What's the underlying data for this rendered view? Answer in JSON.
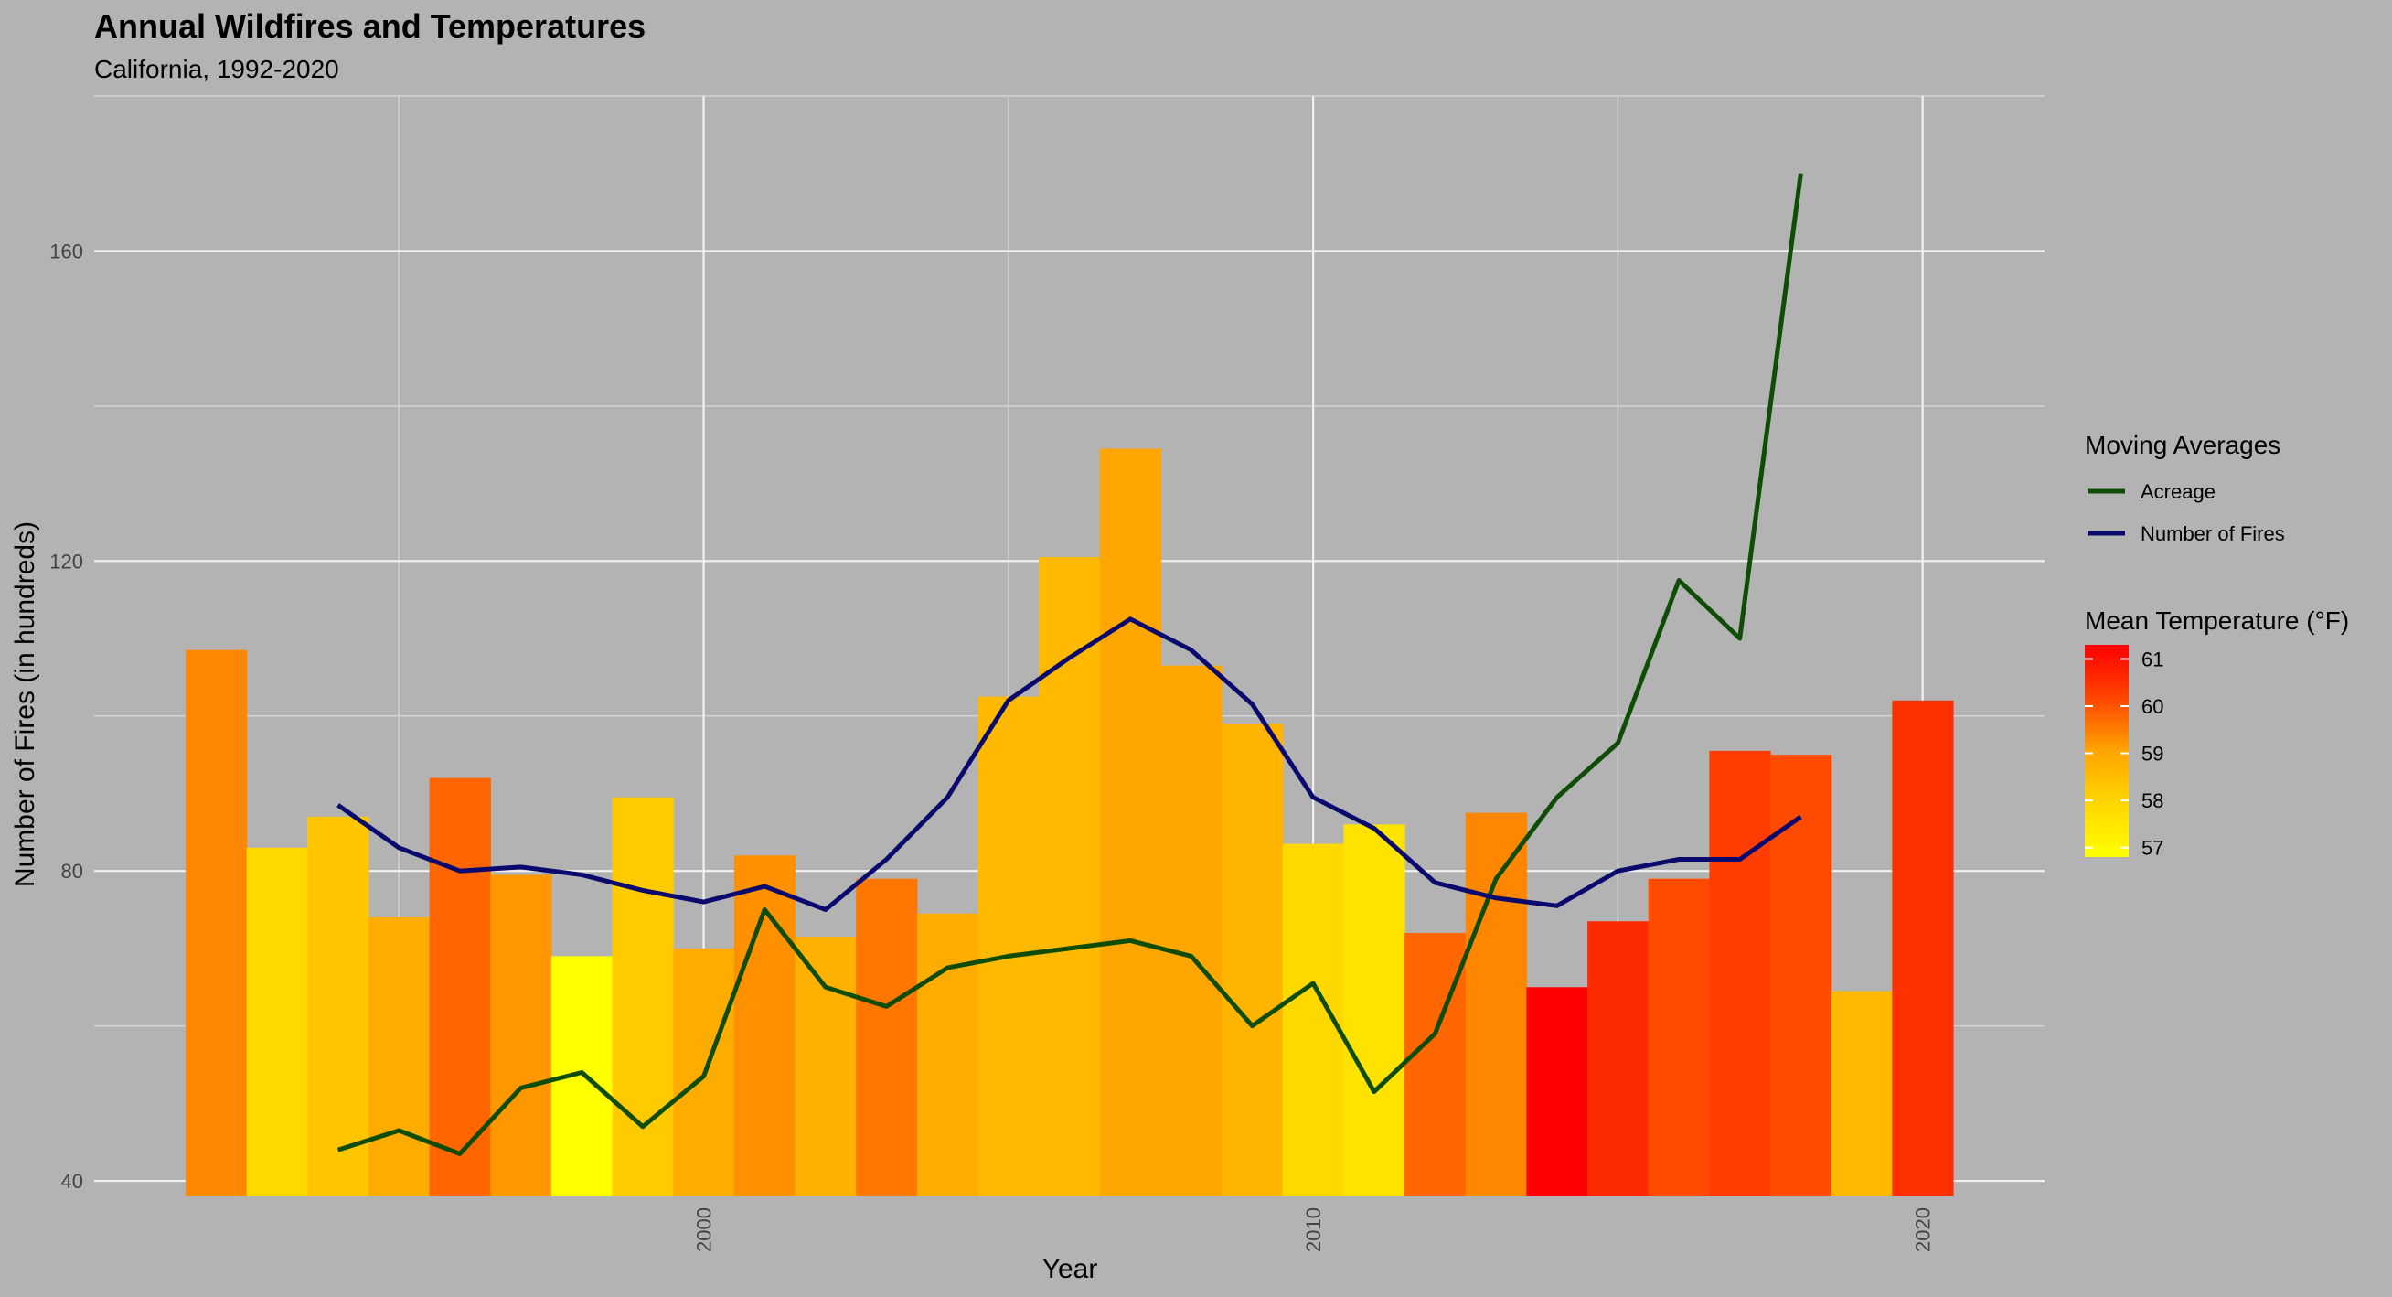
{
  "chart_data": {
    "type": "bar",
    "title": "Annual Wildfires and Temperatures",
    "subtitle": "California, 1992-2020",
    "xlabel": "Year",
    "ylabel": "Number of Fires (in hundreds)",
    "ylim": [
      38,
      180
    ],
    "xlim": [
      1990,
      2022
    ],
    "y_ticks": [
      40,
      80,
      120,
      160
    ],
    "x_ticks": [
      2000,
      2010,
      2020
    ],
    "x_tick_labels": [
      "2000",
      "2010",
      "2020"
    ],
    "y_tick_labels": [
      "40",
      "80",
      "120",
      "160"
    ],
    "grid": true,
    "bars": [
      {
        "year": 1992,
        "fires": 108.5,
        "temp": 59.4
      },
      {
        "year": 1993,
        "fires": 83,
        "temp": 57.9
      },
      {
        "year": 1994,
        "fires": 87,
        "temp": 58.3
      },
      {
        "year": 1995,
        "fires": 74,
        "temp": 58.9
      },
      {
        "year": 1996,
        "fires": 92,
        "temp": 59.8
      },
      {
        "year": 1997,
        "fires": 79.5,
        "temp": 59.2
      },
      {
        "year": 1998,
        "fires": 69,
        "temp": 56.8
      },
      {
        "year": 1999,
        "fires": 89.5,
        "temp": 58.2
      },
      {
        "year": 2000,
        "fires": 70,
        "temp": 58.9
      },
      {
        "year": 2001,
        "fires": 82,
        "temp": 59.3
      },
      {
        "year": 2002,
        "fires": 71.5,
        "temp": 58.8
      },
      {
        "year": 2003,
        "fires": 79,
        "temp": 59.6
      },
      {
        "year": 2004,
        "fires": 74.5,
        "temp": 58.9
      },
      {
        "year": 2005,
        "fires": 102.5,
        "temp": 58.6
      },
      {
        "year": 2006,
        "fires": 120.5,
        "temp": 58.6
      },
      {
        "year": 2007,
        "fires": 134.5,
        "temp": 59
      },
      {
        "year": 2008,
        "fires": 106.5,
        "temp": 59
      },
      {
        "year": 2009,
        "fires": 99,
        "temp": 58.7
      },
      {
        "year": 2010,
        "fires": 83.5,
        "temp": 57.9
      },
      {
        "year": 2011,
        "fires": 86,
        "temp": 57.6
      },
      {
        "year": 2012,
        "fires": 72,
        "temp": 59.8
      },
      {
        "year": 2013,
        "fires": 87.5,
        "temp": 59.4
      },
      {
        "year": 2014,
        "fires": 65,
        "temp": 61.3
      },
      {
        "year": 2015,
        "fires": 73.5,
        "temp": 60.6
      },
      {
        "year": 2016,
        "fires": 79,
        "temp": 60.1
      },
      {
        "year": 2017,
        "fires": 95.5,
        "temp": 60.3
      },
      {
        "year": 2018,
        "fires": 95,
        "temp": 60.1
      },
      {
        "year": 2019,
        "fires": 64.5,
        "temp": 58.6
      },
      {
        "year": 2020,
        "fires": 102,
        "temp": 60.5
      }
    ],
    "series": [
      {
        "name": "Acreage",
        "color": "#0f4d06",
        "x": [
          1994,
          1995,
          1996,
          1997,
          1998,
          1999,
          2000,
          2001,
          2002,
          2003,
          2004,
          2005,
          2006,
          2007,
          2008,
          2009,
          2010,
          2011,
          2012,
          2013,
          2014,
          2015,
          2016,
          2017,
          2018
        ],
        "values": [
          44,
          46.5,
          43.5,
          52,
          54,
          47,
          53.5,
          75,
          65,
          62.5,
          67.5,
          69,
          70,
          71,
          69,
          60,
          65.5,
          51.5,
          59,
          79,
          89.5,
          96.5,
          117.5,
          110,
          170
        ]
      },
      {
        "name": "Number of Fires",
        "color": "#0a0a6e",
        "x": [
          1994,
          1995,
          1996,
          1997,
          1998,
          1999,
          2000,
          2001,
          2002,
          2003,
          2004,
          2005,
          2006,
          2007,
          2008,
          2009,
          2010,
          2011,
          2012,
          2013,
          2014,
          2015,
          2016,
          2017,
          2018
        ],
        "values": [
          88.5,
          83,
          80,
          80.5,
          79.5,
          77.5,
          76,
          78,
          75,
          81.5,
          89.5,
          102,
          107.5,
          112.5,
          108.5,
          101.5,
          89.5,
          85.5,
          78.5,
          76.5,
          75.5,
          80,
          81.5,
          81.5,
          87
        ]
      }
    ],
    "legend": {
      "position": "right",
      "lines_title": "Moving Averages",
      "fill_title": "Mean Temperature (°F)",
      "fill_ticks": [
        61,
        60,
        59,
        58,
        57
      ],
      "fill_tick_labels": [
        "61",
        "60",
        "59",
        "58",
        "57"
      ],
      "fill_range": [
        56.8,
        61.3
      ],
      "colors": [
        "#ffff00",
        "#ffd700",
        "#ffa500",
        "#ff4500",
        "#ff0000"
      ]
    }
  }
}
